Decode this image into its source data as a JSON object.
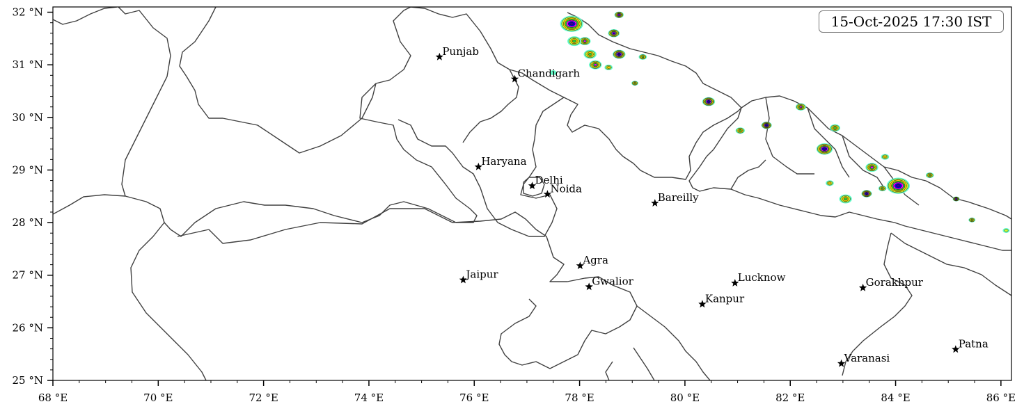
{
  "timestamp": "15-Oct-2025 17:30 IST",
  "x_ticks": [
    {
      "value": 68,
      "label": "68 °E"
    },
    {
      "value": 70,
      "label": "70 °E"
    },
    {
      "value": 72,
      "label": "72 °E"
    },
    {
      "value": 74,
      "label": "74 °E"
    },
    {
      "value": 76,
      "label": "76 °E"
    },
    {
      "value": 78,
      "label": "78 °E"
    },
    {
      "value": 80,
      "label": "80 °E"
    },
    {
      "value": 82,
      "label": "82 °E"
    },
    {
      "value": 84,
      "label": "84 °E"
    },
    {
      "value": 86,
      "label": "86 °E"
    }
  ],
  "y_ticks": [
    {
      "value": 25,
      "label": "25 °N"
    },
    {
      "value": 26,
      "label": "26 °N"
    },
    {
      "value": 27,
      "label": "27 °N"
    },
    {
      "value": 28,
      "label": "28 °N"
    },
    {
      "value": 29,
      "label": "29 °N"
    },
    {
      "value": 30,
      "label": "30 °N"
    },
    {
      "value": 31,
      "label": "31 °N"
    },
    {
      "value": 32,
      "label": "32 °N"
    }
  ],
  "extent": {
    "lon": [
      68,
      86.2
    ],
    "lat": [
      25,
      32.1
    ]
  },
  "cities": [
    {
      "name": "Punjab",
      "lon": 75.34,
      "lat": 31.15
    },
    {
      "name": "Chandigarh",
      "lon": 76.77,
      "lat": 30.73
    },
    {
      "name": "Haryana",
      "lon": 76.08,
      "lat": 29.06
    },
    {
      "name": "Delhi",
      "lon": 77.1,
      "lat": 28.7
    },
    {
      "name": "Noida",
      "lon": 77.39,
      "lat": 28.54
    },
    {
      "name": "Bareilly",
      "lon": 79.43,
      "lat": 28.37
    },
    {
      "name": "Agra",
      "lon": 78.01,
      "lat": 27.18
    },
    {
      "name": "Jaipur",
      "lon": 75.79,
      "lat": 26.91
    },
    {
      "name": "Gwalior",
      "lon": 78.18,
      "lat": 26.78
    },
    {
      "name": "Lucknow",
      "lon": 80.95,
      "lat": 26.85
    },
    {
      "name": "Kanpur",
      "lon": 80.33,
      "lat": 26.45
    },
    {
      "name": "Gorakhpur",
      "lon": 83.38,
      "lat": 26.76
    },
    {
      "name": "Patna",
      "lon": 85.14,
      "lat": 25.59
    },
    {
      "name": "Varanasi",
      "lon": 82.97,
      "lat": 25.32
    }
  ],
  "rain_colors": [
    "#66ffcc",
    "#ccff33",
    "#ffcc00",
    "#33cc33",
    "#ff00ff",
    "#0000ff",
    "#330099"
  ],
  "rain_cells": [
    {
      "lon": 77.85,
      "lat": 31.78,
      "size": 1.0,
      "peak": 6
    },
    {
      "lon": 78.1,
      "lat": 31.45,
      "size": 0.5,
      "peak": 4
    },
    {
      "lon": 77.9,
      "lat": 31.45,
      "size": 0.6,
      "peak": 3
    },
    {
      "lon": 78.2,
      "lat": 31.2,
      "size": 0.55,
      "peak": 3
    },
    {
      "lon": 78.3,
      "lat": 31.0,
      "size": 0.55,
      "peak": 4
    },
    {
      "lon": 78.65,
      "lat": 31.6,
      "size": 0.5,
      "peak": 5
    },
    {
      "lon": 78.75,
      "lat": 31.95,
      "size": 0.4,
      "peak": 5
    },
    {
      "lon": 78.75,
      "lat": 31.2,
      "size": 0.55,
      "peak": 6
    },
    {
      "lon": 78.55,
      "lat": 30.95,
      "size": 0.35,
      "peak": 2
    },
    {
      "lon": 79.2,
      "lat": 31.15,
      "size": 0.35,
      "peak": 3
    },
    {
      "lon": 77.5,
      "lat": 30.85,
      "size": 0.3,
      "peak": 0
    },
    {
      "lon": 79.05,
      "lat": 30.65,
      "size": 0.3,
      "peak": 3
    },
    {
      "lon": 80.45,
      "lat": 30.3,
      "size": 0.55,
      "peak": 6
    },
    {
      "lon": 81.05,
      "lat": 29.75,
      "size": 0.4,
      "peak": 3
    },
    {
      "lon": 81.55,
      "lat": 29.85,
      "size": 0.45,
      "peak": 6
    },
    {
      "lon": 82.2,
      "lat": 30.2,
      "size": 0.45,
      "peak": 4
    },
    {
      "lon": 82.65,
      "lat": 29.4,
      "size": 0.7,
      "peak": 6
    },
    {
      "lon": 82.85,
      "lat": 29.8,
      "size": 0.45,
      "peak": 3
    },
    {
      "lon": 83.55,
      "lat": 29.05,
      "size": 0.55,
      "peak": 4
    },
    {
      "lon": 83.8,
      "lat": 29.25,
      "size": 0.35,
      "peak": 2
    },
    {
      "lon": 83.05,
      "lat": 28.45,
      "size": 0.55,
      "peak": 3
    },
    {
      "lon": 82.75,
      "lat": 28.75,
      "size": 0.35,
      "peak": 2
    },
    {
      "lon": 83.45,
      "lat": 28.55,
      "size": 0.45,
      "peak": 6
    },
    {
      "lon": 83.75,
      "lat": 28.65,
      "size": 0.35,
      "peak": 3
    },
    {
      "lon": 84.05,
      "lat": 28.7,
      "size": 1.0,
      "peak": 6
    },
    {
      "lon": 84.65,
      "lat": 28.9,
      "size": 0.35,
      "peak": 3
    },
    {
      "lon": 85.15,
      "lat": 28.45,
      "size": 0.3,
      "peak": 5
    },
    {
      "lon": 85.45,
      "lat": 28.05,
      "size": 0.3,
      "peak": 3
    },
    {
      "lon": 86.1,
      "lat": 27.85,
      "size": 0.3,
      "peak": 1
    }
  ]
}
